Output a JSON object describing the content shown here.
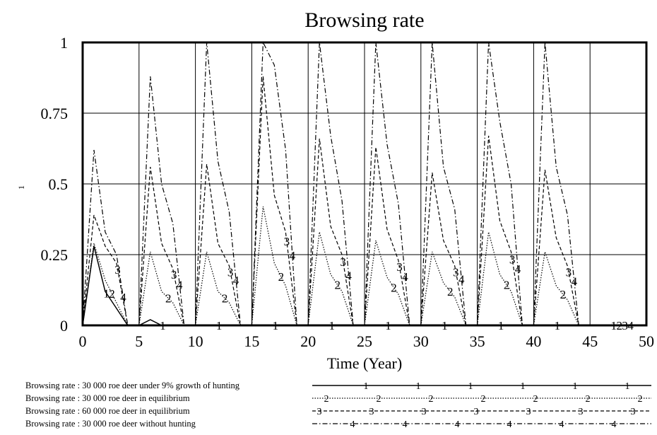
{
  "chart_data": {
    "type": "line",
    "title": "Browsing rate",
    "xlabel": "Time (Year)",
    "ylabel": "1",
    "xlim": [
      0,
      50
    ],
    "ylim": [
      0,
      1
    ],
    "xticks": [
      "0",
      "5",
      "10",
      "15",
      "20",
      "25",
      "30",
      "35",
      "40",
      "45",
      "50"
    ],
    "yticks": [
      "0",
      "0.25",
      "0.5",
      "0.75",
      "1"
    ],
    "grid": true,
    "legend_position": "bottom",
    "series": [
      {
        "name": "Browsing rate : 30 000 roe deer under 9% growth of hunting",
        "marker": "1",
        "x": [
          0,
          1,
          2,
          3,
          4,
          5,
          6,
          7,
          8,
          9,
          10,
          11,
          12,
          13,
          14,
          15,
          16,
          17,
          18,
          19,
          20,
          21,
          22,
          23,
          24,
          25,
          26,
          27,
          28,
          29,
          30,
          31,
          32,
          33,
          34,
          35,
          36,
          37,
          38,
          39,
          40,
          41,
          42,
          43,
          44,
          45,
          46,
          47,
          48,
          49,
          50
        ],
        "y": [
          0,
          0.28,
          0.12,
          0.06,
          0.0,
          0.0,
          0.02,
          0.0,
          0.0,
          0.0,
          0.0,
          0.0,
          0.0,
          0.0,
          0.0,
          0.0,
          0.0,
          0.0,
          0.0,
          0.0,
          0.0,
          0.0,
          0.0,
          0.0,
          0.0,
          0.0,
          0.0,
          0.0,
          0.0,
          0.0,
          0.0,
          0.0,
          0.0,
          0.0,
          0.0,
          0.0,
          0.0,
          0.0,
          0.0,
          0.0,
          0.0,
          0.0,
          0.0,
          0.0,
          0.0,
          0.0,
          0.0,
          0.0,
          0.0,
          0.0,
          0.0
        ]
      },
      {
        "name": "Browsing rate : 30 000 roe deer in equilibrium",
        "marker": "2",
        "x": [
          0,
          1,
          2,
          3,
          4,
          5,
          6,
          7,
          8,
          9,
          10,
          11,
          12,
          13,
          14,
          15,
          16,
          17,
          18,
          19,
          20,
          21,
          22,
          23,
          24,
          25,
          26,
          27,
          28,
          29,
          30,
          31,
          32,
          33,
          34,
          35,
          36,
          37,
          38,
          39,
          40,
          41,
          42,
          43,
          44,
          45,
          46,
          47,
          48,
          49,
          50
        ],
        "y": [
          0,
          0.29,
          0.16,
          0.08,
          0.0,
          0.0,
          0.26,
          0.12,
          0.08,
          0.0,
          0.0,
          0.26,
          0.12,
          0.08,
          0.0,
          0.0,
          0.42,
          0.22,
          0.14,
          0.0,
          0.0,
          0.33,
          0.18,
          0.12,
          0.0,
          0.0,
          0.3,
          0.17,
          0.11,
          0.0,
          0.0,
          0.26,
          0.15,
          0.1,
          0.0,
          0.0,
          0.33,
          0.18,
          0.12,
          0.0,
          0.0,
          0.26,
          0.14,
          0.09,
          0.0,
          0.0,
          0.0,
          0.0,
          0.0,
          0.0,
          0.0
        ]
      },
      {
        "name": "Browsing rate : 60 000 roe deer in equilibrium",
        "marker": "3",
        "x": [
          0,
          1,
          2,
          3,
          4,
          5,
          6,
          7,
          8,
          9,
          10,
          11,
          12,
          13,
          14,
          15,
          16,
          17,
          18,
          19,
          20,
          21,
          22,
          23,
          24,
          25,
          26,
          27,
          28,
          29,
          30,
          31,
          32,
          33,
          34,
          35,
          36,
          37,
          38,
          39,
          40,
          41,
          42,
          43,
          44,
          45,
          46,
          47,
          48,
          49,
          50
        ],
        "y": [
          0,
          0.39,
          0.28,
          0.22,
          0.0,
          0.0,
          0.56,
          0.29,
          0.2,
          0.0,
          0.0,
          0.57,
          0.29,
          0.21,
          0.0,
          0.0,
          0.88,
          0.46,
          0.33,
          0.0,
          0.0,
          0.66,
          0.35,
          0.25,
          0.0,
          0.0,
          0.63,
          0.34,
          0.23,
          0.0,
          0.0,
          0.54,
          0.3,
          0.21,
          0.0,
          0.0,
          0.67,
          0.37,
          0.26,
          0.0,
          0.0,
          0.55,
          0.31,
          0.21,
          0.0,
          0.0,
          0.0,
          0.0,
          0.0,
          0.0,
          0.0
        ]
      },
      {
        "name": "Browsing rate : 30 000 roe deer without hunting",
        "marker": "4",
        "x": [
          0,
          1,
          2,
          3,
          4,
          5,
          6,
          7,
          8,
          9,
          10,
          11,
          12,
          13,
          14,
          15,
          16,
          17,
          18,
          19,
          20,
          21,
          22,
          23,
          24,
          25,
          26,
          27,
          28,
          29,
          30,
          31,
          32,
          33,
          34,
          35,
          36,
          37,
          38,
          39,
          40,
          41,
          42,
          43,
          44,
          45,
          46,
          47,
          48,
          49,
          50
        ],
        "y": [
          0,
          0.62,
          0.33,
          0.25,
          0.0,
          0.0,
          0.88,
          0.5,
          0.36,
          0.0,
          0.0,
          1.0,
          0.58,
          0.4,
          0.0,
          0.0,
          1.0,
          0.92,
          0.62,
          0.0,
          0.0,
          1.0,
          0.67,
          0.44,
          0.0,
          0.0,
          1.0,
          0.64,
          0.43,
          0.0,
          0.0,
          1.0,
          0.56,
          0.41,
          0.0,
          0.0,
          1.0,
          0.72,
          0.5,
          0.0,
          0.0,
          1.0,
          0.56,
          0.39,
          0.0,
          0.0,
          0.0,
          0.0,
          0.0,
          0.0,
          0.0
        ]
      }
    ]
  }
}
